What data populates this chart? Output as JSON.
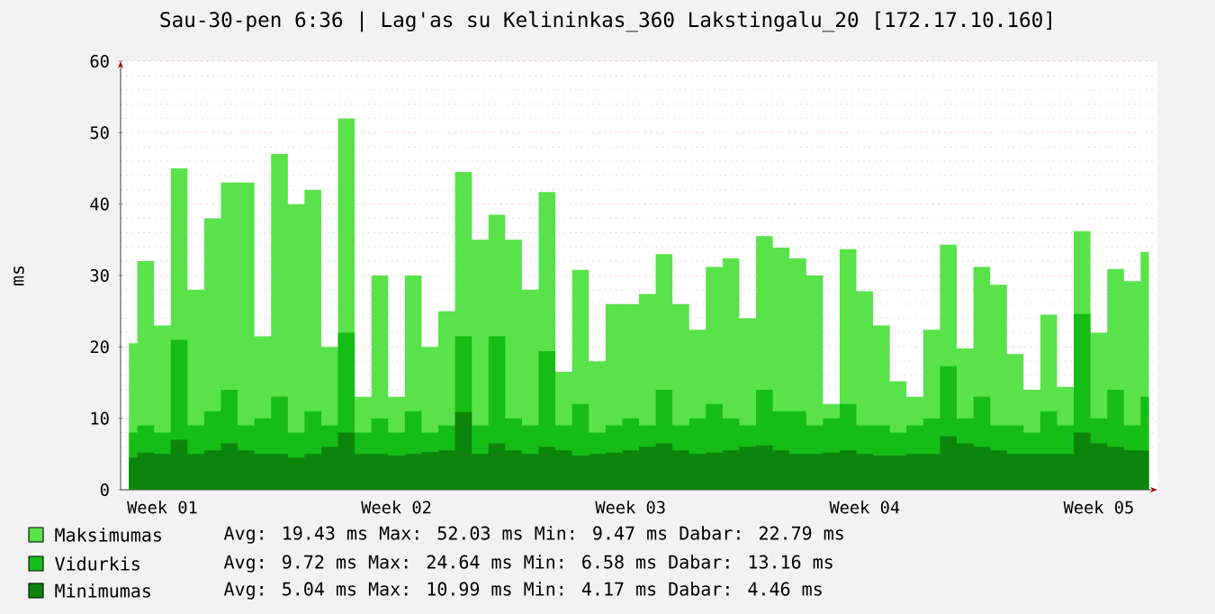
{
  "chart_data": {
    "type": "area",
    "title": "Sau-30-pen 6:36 | Lag'as su Kelininkas_360 Lakstingalu_20 [172.17.10.160]",
    "ylabel": "ms",
    "categories": [
      null,
      null,
      "Week 01",
      null,
      null,
      null,
      null,
      null,
      null,
      null,
      null,
      null,
      null,
      null,
      null,
      null,
      "Week 02",
      null,
      null,
      null,
      null,
      null,
      null,
      null,
      null,
      null,
      null,
      null,
      null,
      null,
      "Week 03",
      null,
      null,
      null,
      null,
      null,
      null,
      null,
      null,
      null,
      null,
      null,
      null,
      null,
      "Week 04",
      null,
      null,
      null,
      null,
      null,
      null,
      null,
      null,
      null,
      null,
      null,
      null,
      null,
      "Week 05",
      null,
      null,
      null
    ],
    "ylim": [
      0,
      60
    ],
    "yticks": [
      0,
      10,
      20,
      30,
      40,
      50,
      60
    ],
    "grid": "y",
    "legend": "bottom",
    "annotations": [
      "Avg:  19.43 ms   Max:  52.03 ms   Min:   9.47 ms   Dabar:  22.79 ms",
      "Avg:   9.72 ms   Max:  24.64 ms   Min:   6.58 ms   Dabar:  13.16 ms",
      "Avg:   5.04 ms   Max:  10.99 ms   Min:   4.17 ms   Dabar:   4.46 ms"
    ],
    "series": [
      {
        "name": "Maksimumas",
        "color": "#59e24a",
        "values": [
          20.5,
          32,
          23,
          45,
          28,
          38,
          43,
          43,
          21.5,
          47,
          40,
          42,
          20,
          52,
          13,
          30,
          13,
          30,
          20,
          25,
          44.5,
          35,
          38.5,
          35,
          28,
          41.7,
          16.5,
          30.8,
          18,
          26,
          26,
          27.4,
          33,
          26,
          22.4,
          31.2,
          32.4,
          24,
          35.5,
          33.9,
          32.4,
          30,
          12,
          33.7,
          27.8,
          23,
          15.2,
          13,
          22.4,
          34.3,
          19.8,
          31.2,
          28.7,
          19,
          14,
          24.5,
          14.4,
          36.2,
          22,
          30.9,
          29.2,
          33.3
        ]
      },
      {
        "name": "Vidurkis",
        "color": "#16bd16",
        "values": [
          8,
          9,
          8,
          21,
          9,
          11,
          14,
          9,
          10,
          13,
          8,
          11,
          9,
          22,
          8,
          10,
          8,
          11,
          8,
          9,
          21.5,
          9,
          21.5,
          10,
          9,
          19.4,
          9,
          12,
          8,
          9,
          10,
          9,
          14,
          9,
          10,
          12,
          10,
          9,
          14,
          11,
          11,
          9,
          10,
          12,
          9,
          9,
          8,
          9,
          10,
          17.3,
          10,
          13,
          9,
          9,
          8,
          11,
          9,
          24.6,
          10,
          14,
          9,
          13
        ]
      },
      {
        "name": "Minimumas",
        "color": "#0d850d",
        "values": [
          4.5,
          5.2,
          5,
          7,
          5,
          5.5,
          6.5,
          5.5,
          5,
          5,
          4.5,
          5,
          6,
          8,
          5,
          5,
          4.8,
          5,
          5.3,
          5.5,
          10.9,
          5,
          6.5,
          5.5,
          5,
          6,
          5.5,
          4.8,
          5,
          5.2,
          5.5,
          6,
          6.5,
          5.5,
          5,
          5.2,
          5.5,
          6,
          6.2,
          5.5,
          5,
          5,
          5.2,
          5.5,
          5,
          4.8,
          4.8,
          5,
          5,
          7.5,
          6.5,
          6,
          5.5,
          5,
          5,
          5,
          5,
          8,
          6.5,
          6,
          5.5,
          5.5
        ]
      }
    ]
  }
}
